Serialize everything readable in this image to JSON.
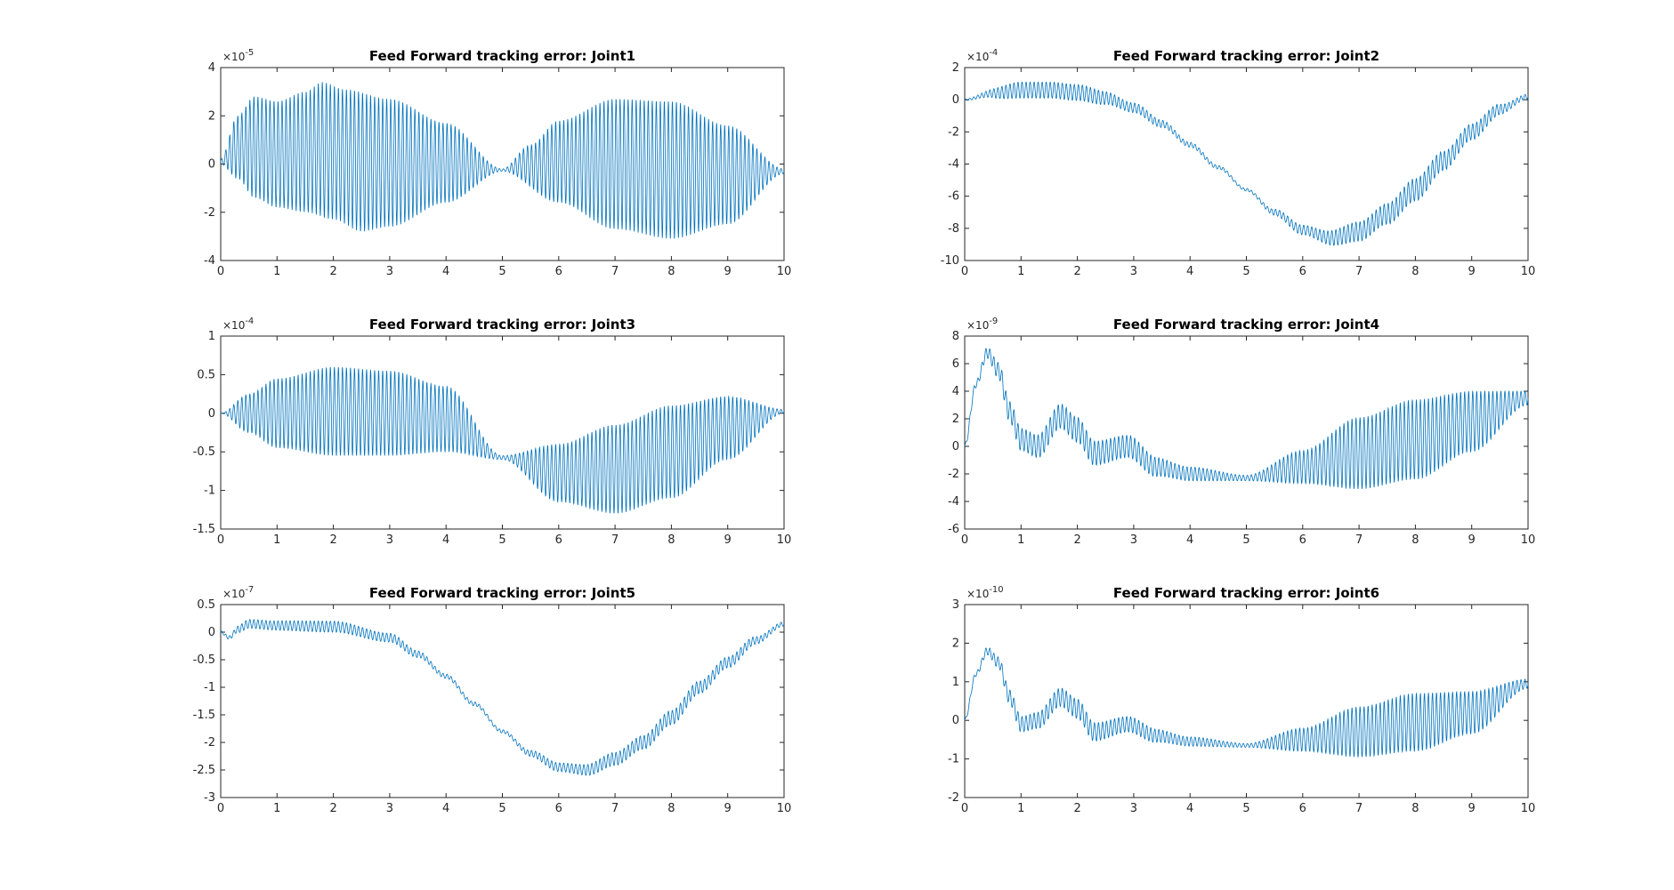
{
  "chart_data": [
    {
      "type": "line",
      "title": "Feed Forward tracking error: Joint1",
      "xlabel": "",
      "ylabel": "",
      "xlim": [
        0,
        10
      ],
      "ylim": [
        -4,
        4
      ],
      "x_ticks": [
        "0",
        "1",
        "2",
        "3",
        "4",
        "5",
        "6",
        "7",
        "8",
        "9",
        "10"
      ],
      "y_ticks": [
        "-4",
        "-2",
        "0",
        "2",
        "4"
      ],
      "y_exponent_base": "×10",
      "y_exponent": "-5",
      "color": "#0072BD",
      "oscillation_cycles_per_unit": 14,
      "upper_envelope": [
        [
          0,
          0.2
        ],
        [
          0.3,
          2.0
        ],
        [
          0.6,
          2.8
        ],
        [
          1.0,
          2.6
        ],
        [
          1.5,
          3.0
        ],
        [
          1.8,
          3.4
        ],
        [
          2.2,
          3.1
        ],
        [
          3,
          2.7
        ],
        [
          4,
          1.7
        ],
        [
          5,
          -0.2
        ],
        [
          5.5,
          0.8
        ],
        [
          6,
          1.8
        ],
        [
          7,
          2.7
        ],
        [
          8,
          2.6
        ],
        [
          9,
          1.6
        ],
        [
          10,
          -0.2
        ]
      ],
      "lower_envelope": [
        [
          0,
          0
        ],
        [
          0.3,
          -0.6
        ],
        [
          0.6,
          -1.4
        ],
        [
          1.0,
          -1.8
        ],
        [
          1.5,
          -2.0
        ],
        [
          2,
          -2.3
        ],
        [
          2.5,
          -2.8
        ],
        [
          3,
          -2.6
        ],
        [
          4,
          -1.6
        ],
        [
          5,
          -0.3
        ],
        [
          6,
          -1.6
        ],
        [
          7,
          -2.7
        ],
        [
          8,
          -3.1
        ],
        [
          9,
          -2.5
        ],
        [
          10,
          -0.4
        ]
      ]
    },
    {
      "type": "line",
      "title": "Feed Forward tracking error: Joint2",
      "xlabel": "",
      "ylabel": "",
      "xlim": [
        0,
        10
      ],
      "ylim": [
        -10,
        2
      ],
      "x_ticks": [
        "0",
        "1",
        "2",
        "3",
        "4",
        "5",
        "6",
        "7",
        "8",
        "9",
        "10"
      ],
      "y_ticks": [
        "-10",
        "-8",
        "-6",
        "-4",
        "-2",
        "0",
        "2"
      ],
      "y_exponent_base": "×10",
      "y_exponent": "-4",
      "color": "#0072BD",
      "oscillation_cycles_per_unit": 14,
      "center_curve": [
        [
          0,
          0
        ],
        [
          0.5,
          0.4
        ],
        [
          1,
          0.6
        ],
        [
          1.5,
          0.6
        ],
        [
          2,
          0.45
        ],
        [
          2.5,
          0.1
        ],
        [
          3,
          -0.5
        ],
        [
          3.5,
          -1.5
        ],
        [
          4,
          -2.8
        ],
        [
          4.5,
          -4.2
        ],
        [
          5,
          -5.6
        ],
        [
          5.5,
          -7.0
        ],
        [
          6,
          -8.1
        ],
        [
          6.5,
          -8.6
        ],
        [
          7,
          -8.2
        ],
        [
          7.5,
          -7.1
        ],
        [
          8,
          -5.6
        ],
        [
          8.5,
          -3.8
        ],
        [
          9,
          -2.0
        ],
        [
          9.5,
          -0.6
        ],
        [
          10,
          0.2
        ]
      ],
      "amplitude": [
        [
          0,
          0.05
        ],
        [
          1,
          0.5
        ],
        [
          2,
          0.5
        ],
        [
          3,
          0.3
        ],
        [
          4,
          0.15
        ],
        [
          5,
          0.08
        ],
        [
          6,
          0.3
        ],
        [
          7,
          0.6
        ],
        [
          8,
          0.7
        ],
        [
          9,
          0.5
        ],
        [
          10,
          0.15
        ]
      ]
    },
    {
      "type": "line",
      "title": "Feed Forward tracking error: Joint3",
      "xlabel": "",
      "ylabel": "",
      "xlim": [
        0,
        10
      ],
      "ylim": [
        -1.5,
        1
      ],
      "x_ticks": [
        "0",
        "1",
        "2",
        "3",
        "4",
        "5",
        "6",
        "7",
        "8",
        "9",
        "10"
      ],
      "y_ticks": [
        "-1.5",
        "-1",
        "-0.5",
        "0",
        "0.5",
        "1"
      ],
      "y_exponent_base": "×10",
      "y_exponent": "-4",
      "color": "#0072BD",
      "oscillation_cycles_per_unit": 14,
      "upper_envelope": [
        [
          0,
          0
        ],
        [
          0.5,
          0.25
        ],
        [
          1,
          0.45
        ],
        [
          2,
          0.6
        ],
        [
          3,
          0.55
        ],
        [
          4,
          0.35
        ],
        [
          5,
          -0.55
        ],
        [
          6,
          -0.4
        ],
        [
          7,
          -0.15
        ],
        [
          8,
          0.1
        ],
        [
          9,
          0.22
        ],
        [
          10,
          0.05
        ]
      ],
      "lower_envelope": [
        [
          0,
          0
        ],
        [
          0.5,
          -0.25
        ],
        [
          1,
          -0.45
        ],
        [
          2,
          -0.55
        ],
        [
          3,
          -0.55
        ],
        [
          4,
          -0.5
        ],
        [
          5,
          -0.6
        ],
        [
          6,
          -1.15
        ],
        [
          7,
          -1.3
        ],
        [
          8,
          -1.1
        ],
        [
          9,
          -0.6
        ],
        [
          10,
          0
        ]
      ]
    },
    {
      "type": "line",
      "title": "Feed Forward tracking error: Joint4",
      "xlabel": "",
      "ylabel": "",
      "xlim": [
        0,
        10
      ],
      "ylim": [
        -6,
        8
      ],
      "x_ticks": [
        "0",
        "1",
        "2",
        "3",
        "4",
        "5",
        "6",
        "7",
        "8",
        "9",
        "10"
      ],
      "y_ticks": [
        "-6",
        "-4",
        "-2",
        "0",
        "2",
        "4",
        "6",
        "8"
      ],
      "y_exponent_base": "×10",
      "y_exponent": "-9",
      "color": "#0072BD",
      "oscillation_cycles_per_unit": 14,
      "center_curve": [
        [
          0,
          0
        ],
        [
          0.2,
          4.5
        ],
        [
          0.4,
          6.8
        ],
        [
          0.6,
          5.5
        ],
        [
          0.8,
          2.5
        ],
        [
          1,
          0.5
        ],
        [
          1.3,
          0
        ],
        [
          1.7,
          2.2
        ],
        [
          2,
          1.2
        ],
        [
          2.3,
          -0.5
        ],
        [
          2.9,
          0
        ],
        [
          3.4,
          -1.5
        ],
        [
          4,
          -2.0
        ],
        [
          5,
          -2.3
        ],
        [
          6,
          -1.5
        ],
        [
          7,
          -0.5
        ],
        [
          8,
          0.5
        ],
        [
          9,
          1.8
        ],
        [
          10,
          3.5
        ]
      ],
      "amplitude": [
        [
          0,
          0.2
        ],
        [
          1,
          0.8
        ],
        [
          2,
          0.9
        ],
        [
          3,
          0.8
        ],
        [
          4,
          0.5
        ],
        [
          5,
          0.2
        ],
        [
          6,
          1.2
        ],
        [
          7,
          2.6
        ],
        [
          8,
          2.9
        ],
        [
          9,
          2.2
        ],
        [
          10,
          0.5
        ]
      ]
    },
    {
      "type": "line",
      "title": "Feed Forward tracking error: Joint5",
      "xlabel": "",
      "ylabel": "",
      "xlim": [
        0,
        10
      ],
      "ylim": [
        -3,
        0.5
      ],
      "x_ticks": [
        "0",
        "1",
        "2",
        "3",
        "4",
        "5",
        "6",
        "7",
        "8",
        "9",
        "10"
      ],
      "y_ticks": [
        "-3",
        "-2.5",
        "-2",
        "-1.5",
        "-1",
        "-0.5",
        "0",
        "0.5"
      ],
      "y_exponent_base": "×10",
      "y_exponent": "-7",
      "color": "#0072BD",
      "oscillation_cycles_per_unit": 14,
      "center_curve": [
        [
          0,
          0
        ],
        [
          0.15,
          -0.1
        ],
        [
          0.3,
          0.05
        ],
        [
          0.5,
          0.15
        ],
        [
          1,
          0.12
        ],
        [
          2,
          0.1
        ],
        [
          3,
          -0.1
        ],
        [
          3.5,
          -0.4
        ],
        [
          4,
          -0.8
        ],
        [
          4.5,
          -1.3
        ],
        [
          5,
          -1.8
        ],
        [
          5.5,
          -2.2
        ],
        [
          6,
          -2.45
        ],
        [
          6.5,
          -2.5
        ],
        [
          7,
          -2.3
        ],
        [
          7.5,
          -2.0
        ],
        [
          8,
          -1.55
        ],
        [
          8.5,
          -1.0
        ],
        [
          9,
          -0.55
        ],
        [
          9.5,
          -0.15
        ],
        [
          10,
          0.15
        ]
      ],
      "amplitude": [
        [
          0,
          0.02
        ],
        [
          0.5,
          0.08
        ],
        [
          2,
          0.1
        ],
        [
          3,
          0.08
        ],
        [
          4,
          0.04
        ],
        [
          5,
          0.03
        ],
        [
          6,
          0.08
        ],
        [
          7,
          0.12
        ],
        [
          8,
          0.13
        ],
        [
          9,
          0.1
        ],
        [
          10,
          0.04
        ]
      ]
    },
    {
      "type": "line",
      "title": "Feed Forward tracking error: Joint6",
      "xlabel": "",
      "ylabel": "",
      "xlim": [
        0,
        10
      ],
      "ylim": [
        -2,
        3
      ],
      "x_ticks": [
        "0",
        "1",
        "2",
        "3",
        "4",
        "5",
        "6",
        "7",
        "8",
        "9",
        "10"
      ],
      "y_ticks": [
        "-2",
        "-1",
        "0",
        "1",
        "2",
        "3"
      ],
      "y_exponent_base": "×10",
      "y_exponent": "-10",
      "color": "#0072BD",
      "oscillation_cycles_per_unit": 14,
      "center_curve": [
        [
          0,
          0
        ],
        [
          0.2,
          1.2
        ],
        [
          0.4,
          1.8
        ],
        [
          0.6,
          1.5
        ],
        [
          0.8,
          0.6
        ],
        [
          1,
          -0.1
        ],
        [
          1.3,
          0
        ],
        [
          1.7,
          0.6
        ],
        [
          2,
          0.3
        ],
        [
          2.3,
          -0.3
        ],
        [
          2.9,
          -0.1
        ],
        [
          3.4,
          -0.4
        ],
        [
          4,
          -0.55
        ],
        [
          5,
          -0.65
        ],
        [
          6,
          -0.5
        ],
        [
          7,
          -0.3
        ],
        [
          8,
          -0.05
        ],
        [
          9,
          0.2
        ],
        [
          10,
          0.95
        ]
      ],
      "amplitude": [
        [
          0,
          0.05
        ],
        [
          1,
          0.2
        ],
        [
          2,
          0.25
        ],
        [
          3,
          0.2
        ],
        [
          4,
          0.12
        ],
        [
          5,
          0.05
        ],
        [
          6,
          0.3
        ],
        [
          7,
          0.65
        ],
        [
          8,
          0.75
        ],
        [
          9,
          0.55
        ],
        [
          10,
          0.12
        ]
      ]
    }
  ]
}
